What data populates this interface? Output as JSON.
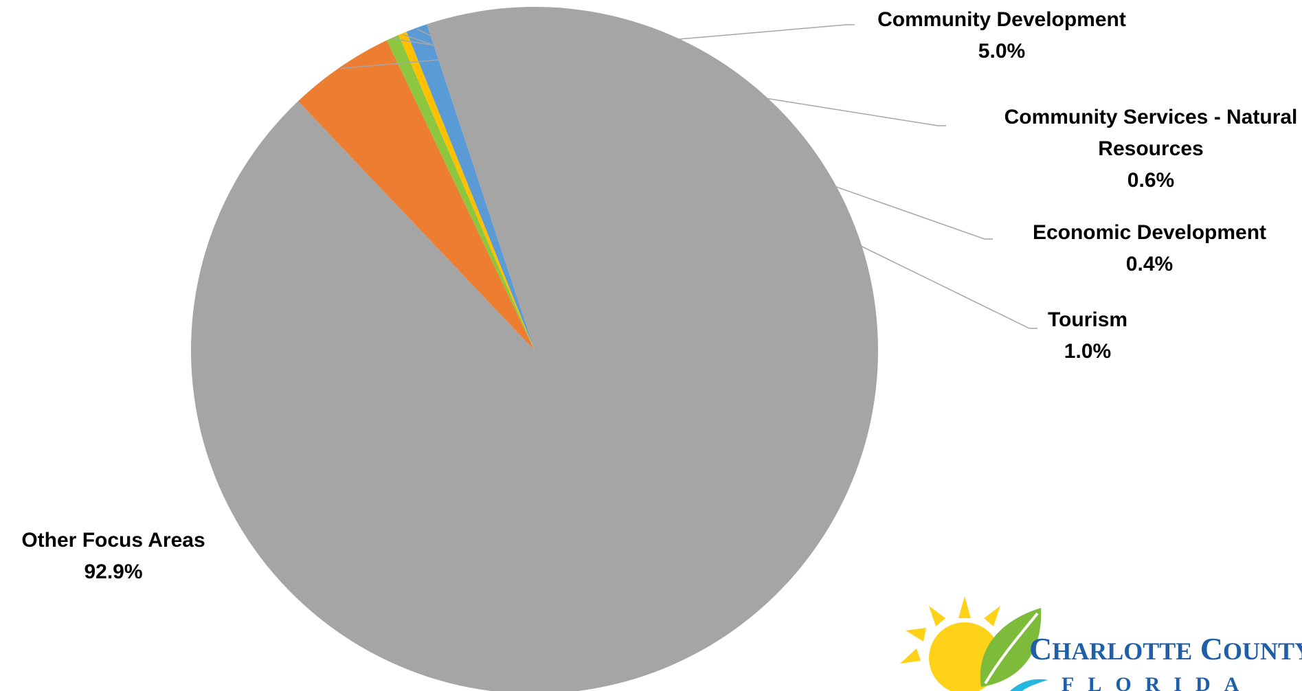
{
  "chart_data": {
    "type": "pie",
    "slices": [
      {
        "name": "Community Development",
        "value": 5.0,
        "label": "5.0%",
        "color": "#ED7D31",
        "label_lines": [
          "Community Development"
        ]
      },
      {
        "name": "Community Services - Natural Resources",
        "value": 0.6,
        "label": "0.6%",
        "color": "#8DC63F",
        "label_lines": [
          "Community Services - Natural",
          "Resources"
        ]
      },
      {
        "name": "Economic Development",
        "value": 0.4,
        "label": "0.4%",
        "color": "#FFC000",
        "label_lines": [
          "Economic Development"
        ]
      },
      {
        "name": "Tourism",
        "value": 1.0,
        "label": "1.0%",
        "color": "#5B9BD5",
        "label_lines": [
          "Tourism"
        ]
      },
      {
        "name": "Other Focus Areas",
        "value": 92.9,
        "label": "92.9%",
        "color": "#A5A5A5",
        "label_lines": [
          "Other Focus Areas"
        ]
      }
    ],
    "legend": "none",
    "data_labels": "outside with leader lines"
  },
  "logo": {
    "name": "CHARLOTTE COUNTY",
    "sub": "FLORIDA"
  }
}
